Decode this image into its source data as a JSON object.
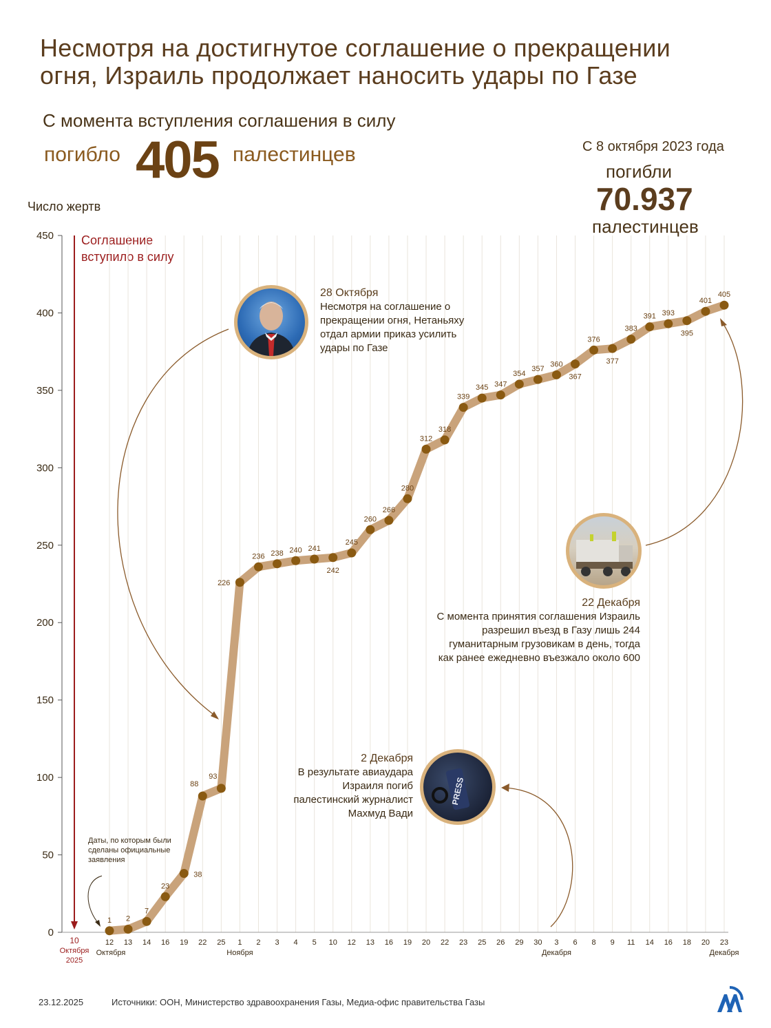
{
  "header": {
    "title_line1": "Несмотря на достигнутое соглашение о прекращении",
    "title_line2": "огня, Израиль продолжает наносить удары по Газе",
    "subtitle": "С момента вступления соглашения в силу",
    "killed_word": "погибло",
    "killed_number": "405",
    "palestinians_word": "палестинцев",
    "since_date": "С 8 октября 2023 года",
    "killed_word2": "погибли",
    "total_killed": "70.937",
    "palestinians_word2": "палестинцев"
  },
  "chart_data": {
    "type": "line",
    "ylabel": "Число жертв",
    "ylim": [
      0,
      450
    ],
    "yticks": [
      0,
      50,
      100,
      150,
      200,
      250,
      300,
      350,
      400,
      450
    ],
    "agreement_label_line1": "Соглашение",
    "agreement_label_line2": "вступило в силу",
    "agreement_day": "10",
    "agreement_month": "Октября",
    "agreement_year": "2025",
    "categories": [
      "12",
      "13",
      "14",
      "16",
      "19",
      "22",
      "25",
      "1",
      "2",
      "3",
      "4",
      "5",
      "10",
      "12",
      "13",
      "16",
      "19",
      "20",
      "22",
      "23",
      "25",
      "26",
      "29",
      "30",
      "3",
      "6",
      "8",
      "9",
      "11",
      "14",
      "16",
      "18",
      "20",
      "23"
    ],
    "month_labels": [
      {
        "index": 0,
        "text": "Октября"
      },
      {
        "index": 7,
        "text": "Ноября"
      },
      {
        "index": 24,
        "text": "Декабря"
      },
      {
        "index": 33,
        "text": "Декабря"
      }
    ],
    "values": [
      1,
      2,
      7,
      23,
      38,
      88,
      93,
      226,
      236,
      238,
      240,
      241,
      242,
      245,
      260,
      266,
      280,
      312,
      318,
      339,
      345,
      347,
      354,
      357,
      360,
      367,
      376,
      377,
      383,
      391,
      393,
      395,
      401,
      405
    ],
    "label_below": [
      4,
      12,
      25,
      27,
      31
    ]
  },
  "annotations": {
    "oct28_title": "28 Октября",
    "oct28_line1": "Несмотря на соглашение о",
    "oct28_line2": "прекращении огня, Нетаньяху",
    "oct28_line3": "отдал армии приказ усилить",
    "oct28_line4": "удары по Газе",
    "dec22_title": "22 Декабря",
    "dec22_line1": "С момента принятия соглашения Израиль",
    "dec22_line2": "разрешил въезд в Газу лишь 244",
    "dec22_line3": "гуманитарным грузовикам в день, тогда",
    "dec22_line4": "как ранее ежедневно въезжало около 600",
    "dec2_title": "2 Декабря",
    "dec2_line1": "В результате авиаудара",
    "dec2_line2": "Израиля погиб",
    "dec2_line3": "палестинский журналист",
    "dec2_line4": "Махмуд Вади",
    "dates_note_line1": "Даты, по которым были",
    "dates_note_line2": "сделаны официальные",
    "dates_note_line3": "заявления",
    "press_text": "PRESS"
  },
  "footer": {
    "date": "23.12.2025",
    "sources": "Источники: ООН, Министерство здравоохранения Газы, Медиа-офис правительства Газы"
  },
  "colors": {
    "line": "#c9a37b",
    "dot": "#8a5a12",
    "title": "#5b3d1e",
    "accent_red": "#9b1c1c",
    "logo": "#1f63b5"
  }
}
